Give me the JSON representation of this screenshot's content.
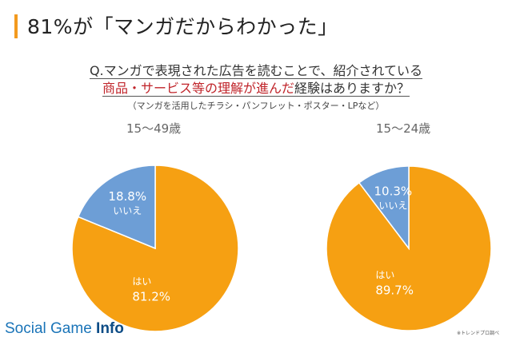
{
  "headline": "81%が「マンガだからわかった」",
  "question": {
    "line1": "Q.マンガで表現された広告を読むことで、紹介されている",
    "line2_highlight": "商品・サービス等の理解が進んだ",
    "line2_rest": "経験はありますか？",
    "note": "（マンガを活用したチラシ・パンフレット・ポスター・LPなど）"
  },
  "chart_data": [
    {
      "type": "pie",
      "title": "15〜49歳",
      "slices": [
        {
          "label": "はい",
          "value": 81.2,
          "value_label": "81.2%",
          "color": "#f6a012"
        },
        {
          "label": "いいえ",
          "value": 18.8,
          "value_label": "18.8%",
          "color": "#6d9ed6"
        }
      ]
    },
    {
      "type": "pie",
      "title": "15〜24歳",
      "slices": [
        {
          "label": "はい",
          "value": 89.7,
          "value_label": "89.7%",
          "color": "#f6a012"
        },
        {
          "label": "いいえ",
          "value": 10.3,
          "value_label": "10.3%",
          "color": "#6d9ed6"
        }
      ]
    }
  ],
  "brand": {
    "part1": "Social Game ",
    "part2": "Info"
  },
  "credit": "※トレンドプロ調べ"
}
